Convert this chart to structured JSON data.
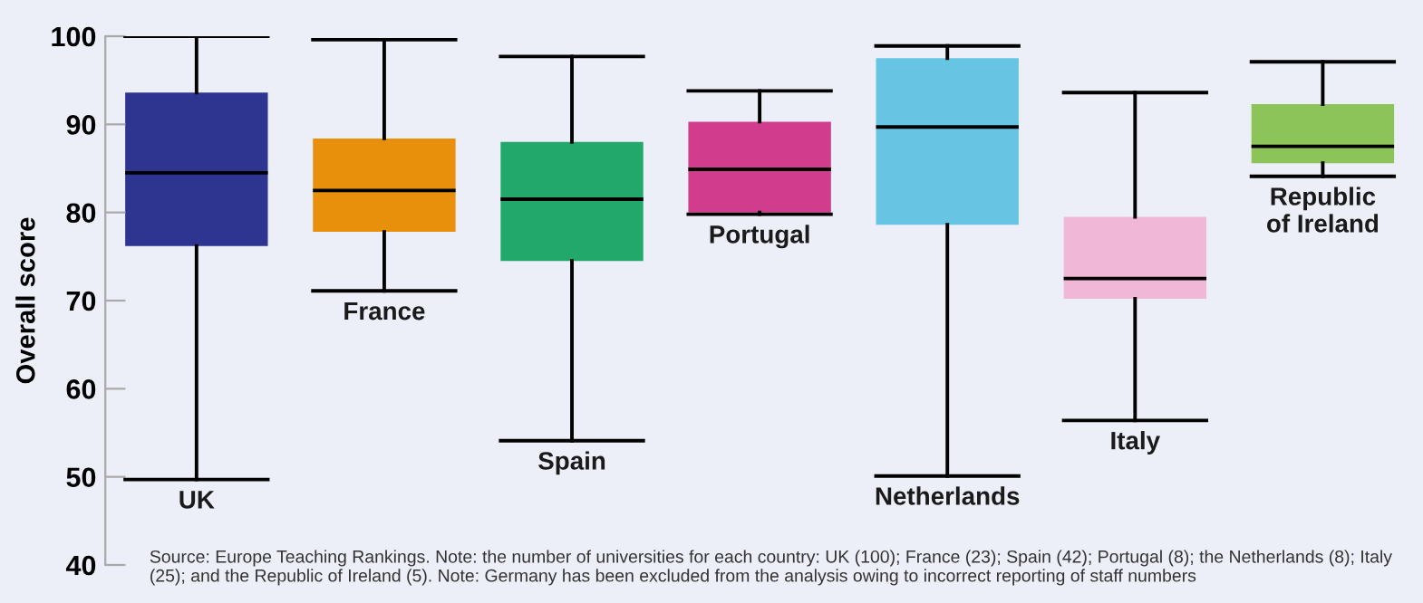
{
  "chart_data": {
    "type": "box",
    "ylabel": "Overall score",
    "categories": [
      "UK",
      "France",
      "Spain",
      "Portugal",
      "Netherlands",
      "Italy",
      "Republic\nof Ireland"
    ],
    "colors": [
      "#2e3590",
      "#e8900c",
      "#22a86a",
      "#d13c8c",
      "#67c5e3",
      "#f1b7d6",
      "#8cc45a"
    ],
    "boxes": [
      {
        "low": 49.7,
        "q1": 76.2,
        "median": 84.5,
        "q3": 93.6,
        "high": 100
      },
      {
        "low": 71.1,
        "q1": 77.8,
        "median": 82.5,
        "q3": 88.4,
        "high": 99.6
      },
      {
        "low": 54.1,
        "q1": 74.5,
        "median": 81.5,
        "q3": 88.0,
        "high": 97.7
      },
      {
        "low": 79.8,
        "q1": 80.0,
        "median": 84.9,
        "q3": 90.3,
        "high": 93.8
      },
      {
        "low": 50.1,
        "q1": 78.6,
        "median": 89.7,
        "q3": 97.5,
        "high": 98.9
      },
      {
        "low": 56.4,
        "q1": 70.2,
        "median": 72.5,
        "q3": 79.5,
        "high": 93.6
      },
      {
        "low": 84.1,
        "q1": 85.6,
        "median": 87.5,
        "q3": 92.3,
        "high": 97.1
      }
    ],
    "ylim": [
      40,
      100
    ],
    "yticks": [
      40,
      50,
      60,
      70,
      80,
      90,
      100
    ],
    "tick_labels": "y",
    "grid": false,
    "legend": false,
    "annotations": [
      "Source: Europe Teaching Rankings. Note: the number of universities for each country: UK (100); France (23); Spain (42); Portugal (8); the Netherlands (8); Italy (25); and the Republic of Ireland (5). Note: Germany has been excluded from the analysis owing to incorrect reporting of staff numbers"
    ]
  }
}
